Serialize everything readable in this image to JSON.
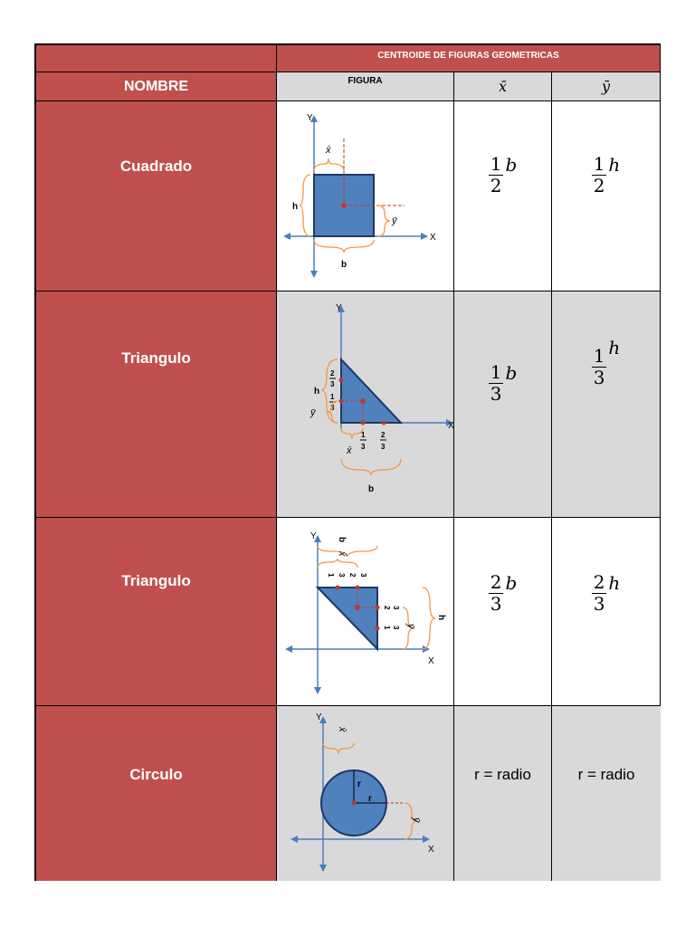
{
  "header": {
    "title": "CENTROIDE DE FIGURAS GEOMETRICAS",
    "col_nombre": "NOMBRE",
    "col_figura": "FIGURA",
    "col_xbar": "x̄",
    "col_ybar": "ȳ"
  },
  "rows": [
    {
      "nombre": "Cuadrado",
      "x_num": "1",
      "x_den": "2",
      "x_var": "b",
      "y_num": "1",
      "y_den": "2",
      "y_var": "h"
    },
    {
      "nombre": "Triangulo",
      "x_num": "1",
      "x_den": "3",
      "x_var": "b",
      "y_num": "1",
      "y_den": "3",
      "y_var": "h"
    },
    {
      "nombre": "Triangulo",
      "x_num": "2",
      "x_den": "3",
      "x_var": "b",
      "y_num": "2",
      "y_den": "3",
      "y_var": "h"
    },
    {
      "nombre": "Circulo",
      "x_text": "r = radio",
      "y_text": "r = radio"
    }
  ],
  "figure_labels": {
    "y_axis": "Y",
    "x_axis": "X",
    "h": "h",
    "b": "b",
    "r": "r",
    "xbar": "x̄",
    "ybar": "ȳ",
    "one": "1",
    "two": "2",
    "three": "3"
  },
  "colors": {
    "header_red": "#c0504d",
    "shape_fill": "#4f81bd",
    "shape_stroke": "#1f3864",
    "axis": "#4a7ebb",
    "brace": "#f79646",
    "centroid": "#c0392b"
  }
}
